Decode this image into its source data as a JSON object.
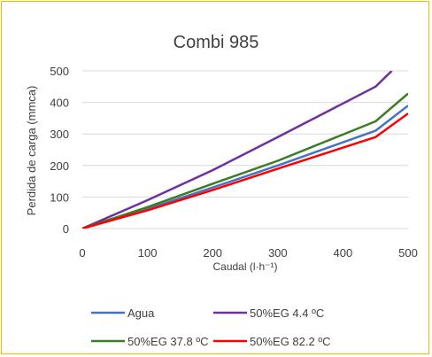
{
  "chart_data": {
    "type": "line",
    "title": "Combi 985",
    "xlabel": "Caudal (l·h⁻¹)",
    "ylabel": "Perdida de carga (mmca)",
    "xlim": [
      0,
      500
    ],
    "ylim": [
      0,
      500
    ],
    "xticks": [
      0,
      100,
      200,
      300,
      400,
      500
    ],
    "yticks": [
      0,
      100,
      200,
      300,
      400,
      500
    ],
    "grid": "horizontal",
    "legend_position": "bottom",
    "series": [
      {
        "name": "Agua",
        "color": "#4472c4",
        "points": [
          [
            0,
            0
          ],
          [
            100,
            62
          ],
          [
            200,
            130
          ],
          [
            300,
            200
          ],
          [
            450,
            310
          ],
          [
            500,
            390
          ]
        ]
      },
      {
        "name": "50%EG 4.4 ºC",
        "color": "#7030a0",
        "points": [
          [
            0,
            0
          ],
          [
            100,
            90
          ],
          [
            200,
            185
          ],
          [
            300,
            290
          ],
          [
            450,
            450
          ],
          [
            475,
            500
          ]
        ]
      },
      {
        "name": "50%EG 37.8 ºC",
        "color": "#3a7d22",
        "points": [
          [
            0,
            0
          ],
          [
            100,
            68
          ],
          [
            200,
            142
          ],
          [
            300,
            215
          ],
          [
            450,
            340
          ],
          [
            500,
            428
          ]
        ]
      },
      {
        "name": "50%EG 82.2 ºC",
        "color": "#ff0000",
        "points": [
          [
            0,
            0
          ],
          [
            100,
            58
          ],
          [
            200,
            122
          ],
          [
            300,
            190
          ],
          [
            450,
            290
          ],
          [
            500,
            365
          ]
        ]
      }
    ]
  }
}
